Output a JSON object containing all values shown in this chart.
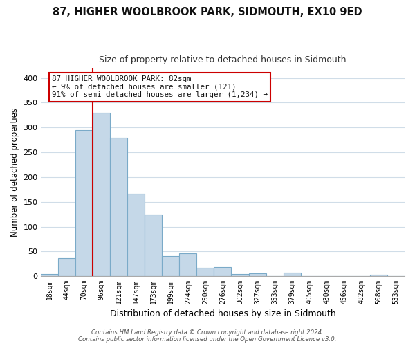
{
  "title": "87, HIGHER WOOLBROOK PARK, SIDMOUTH, EX10 9ED",
  "subtitle": "Size of property relative to detached houses in Sidmouth",
  "xlabel": "Distribution of detached houses by size in Sidmouth",
  "ylabel": "Number of detached properties",
  "bar_labels": [
    "18sqm",
    "44sqm",
    "70sqm",
    "96sqm",
    "121sqm",
    "147sqm",
    "173sqm",
    "199sqm",
    "224sqm",
    "250sqm",
    "276sqm",
    "302sqm",
    "327sqm",
    "353sqm",
    "379sqm",
    "405sqm",
    "430sqm",
    "456sqm",
    "482sqm",
    "508sqm",
    "533sqm"
  ],
  "bar_values": [
    4,
    37,
    295,
    330,
    280,
    167,
    124,
    41,
    46,
    17,
    18,
    5,
    6,
    0,
    7,
    0,
    0,
    0,
    0,
    3,
    0
  ],
  "bar_color": "#c5d8e8",
  "bar_edge_color": "#7aaac8",
  "ylim": [
    0,
    420
  ],
  "yticks": [
    0,
    50,
    100,
    150,
    200,
    250,
    300,
    350,
    400
  ],
  "marker_color": "#cc0000",
  "annotation_line1": "87 HIGHER WOOLBROOK PARK: 82sqm",
  "annotation_line2": "← 9% of detached houses are smaller (121)",
  "annotation_line3": "91% of semi-detached houses are larger (1,234) →",
  "footer_line1": "Contains HM Land Registry data © Crown copyright and database right 2024.",
  "footer_line2": "Contains public sector information licensed under the Open Government Licence v3.0.",
  "bg_color": "#ffffff",
  "plot_bg_color": "#ffffff",
  "grid_color": "#d0dde8",
  "title_fontsize": 10.5,
  "subtitle_fontsize": 9
}
